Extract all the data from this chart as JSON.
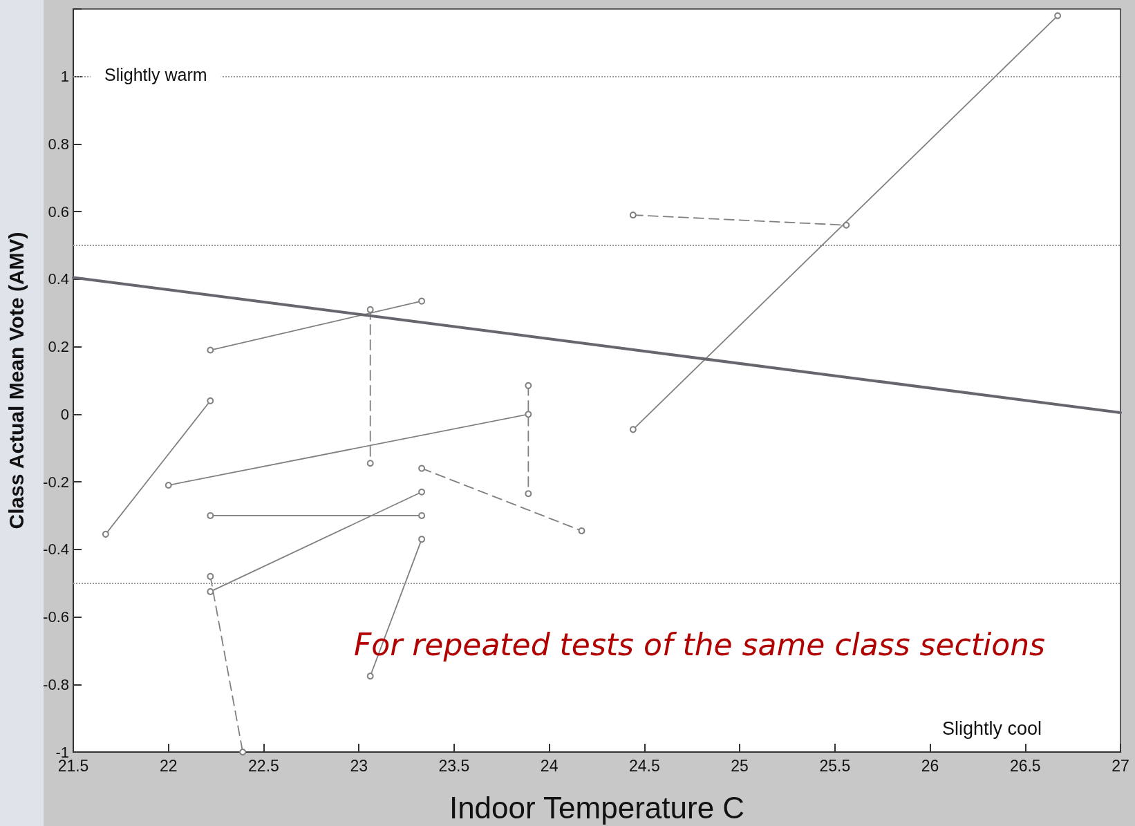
{
  "chart_data": {
    "type": "line",
    "xlabel": "Indoor Temperature C",
    "ylabel": "Class Actual Mean Vote (AMV)",
    "xlim": [
      21.5,
      27
    ],
    "xticks": [
      21.5,
      22,
      22.5,
      23,
      23.5,
      24,
      24.5,
      25,
      25.5,
      26,
      26.5,
      27
    ],
    "ylim": [
      -1,
      1.2
    ],
    "yticks": [
      -1,
      -0.8,
      -0.6,
      -0.4,
      -0.2,
      0,
      0.2,
      0.4,
      0.6,
      0.8,
      1,
      {
        "value": 1.2,
        "label": null
      }
    ],
    "marker": "circle",
    "grid": false,
    "series": [
      {
        "color": "#808080",
        "x": [
          21.67,
          22.22
        ],
        "values": [
          -0.355,
          0.04
        ]
      },
      {
        "color": "#808080",
        "x": [
          22.22,
          23.33
        ],
        "values": [
          0.19,
          0.335
        ]
      },
      {
        "color": "#808080",
        "x": [
          22.0,
          23.89
        ],
        "values": [
          -0.21,
          0.0
        ]
      },
      {
        "color": "#808080",
        "x": [
          22.22,
          23.33
        ],
        "values": [
          -0.3,
          -0.3
        ]
      },
      {
        "color": "#808080",
        "x": [
          22.22,
          23.33
        ],
        "values": [
          -0.525,
          -0.23
        ]
      },
      {
        "color": "#808080",
        "x": [
          23.06,
          23.33
        ],
        "values": [
          -0.775,
          -0.37
        ]
      },
      {
        "color": "#808080",
        "x": [
          24.44,
          26.67
        ],
        "values": [
          -0.045,
          1.18
        ]
      },
      {
        "color": "#808080",
        "line_style": "dashed",
        "x": [
          23.06,
          23.06
        ],
        "values": [
          0.31,
          -0.145
        ]
      },
      {
        "color": "#808080",
        "line_style": "dashed",
        "x": [
          23.33,
          24.17
        ],
        "values": [
          -0.16,
          -0.345
        ]
      },
      {
        "color": "#808080",
        "line_style": "dashed",
        "x": [
          23.89,
          23.89
        ],
        "values": [
          0.085,
          -0.235
        ]
      },
      {
        "color": "#808080",
        "line_style": "dashed",
        "x": [
          22.22,
          22.39
        ],
        "values": [
          -0.48,
          -1.0
        ]
      },
      {
        "color": "#808080",
        "line_style": "dashed",
        "x": [
          24.44,
          25.56
        ],
        "values": [
          0.59,
          0.56
        ]
      },
      {
        "color": "#66666e",
        "marker": "none",
        "x": [
          21.5,
          27
        ],
        "values": [
          0.405,
          0.005
        ]
      }
    ],
    "ref_lines": [
      {
        "axis": "y",
        "value": 1,
        "label": "Slightly warm",
        "color": "#9a9a9a",
        "line_style": "dotted"
      },
      {
        "axis": "y",
        "value": 0.5,
        "color": "#9a9a9a",
        "line_style": "dotted"
      },
      {
        "axis": "y",
        "value": -0.5,
        "color": "#9a9a9a",
        "line_style": "dotted"
      }
    ],
    "annotations": [
      "Slightly cool",
      {
        "text": "For repeated tests of the same class sections"
      }
    ]
  }
}
